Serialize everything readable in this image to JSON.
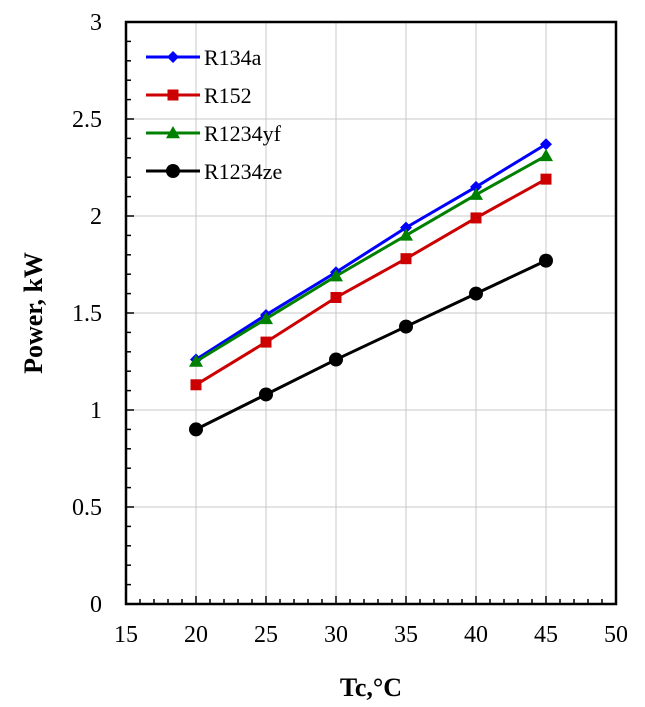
{
  "chart_data": {
    "type": "line",
    "title": "",
    "xlabel": "Tc,°C",
    "ylabel": "Power, kW",
    "xlim": [
      15,
      50
    ],
    "ylim": [
      0,
      3
    ],
    "xticks": [
      15,
      20,
      25,
      30,
      35,
      40,
      45,
      50
    ],
    "yticks": [
      0,
      0.5,
      1,
      1.5,
      2,
      2.5,
      3
    ],
    "xtick_labels": [
      "15",
      "20",
      "25",
      "30",
      "35",
      "40",
      "45",
      "50"
    ],
    "ytick_labels": [
      "0",
      "0.5",
      "1",
      "1.5",
      "2",
      "2.5",
      "3"
    ],
    "grid": true,
    "legend_position": "top-left",
    "x": [
      20,
      25,
      30,
      35,
      40,
      45
    ],
    "series": [
      {
        "name": "R134a",
        "color": "#0000ff",
        "marker": "diamond",
        "values": [
          1.26,
          1.49,
          1.71,
          1.94,
          2.15,
          2.37
        ]
      },
      {
        "name": "R152",
        "color": "#cc0000",
        "marker": "square",
        "values": [
          1.13,
          1.35,
          1.58,
          1.78,
          1.99,
          2.19
        ]
      },
      {
        "name": "R1234yf",
        "color": "#008000",
        "marker": "triangle",
        "values": [
          1.25,
          1.47,
          1.69,
          1.9,
          2.11,
          2.31
        ]
      },
      {
        "name": "R1234ze",
        "color": "#000000",
        "marker": "circle",
        "values": [
          0.9,
          1.08,
          1.26,
          1.43,
          1.6,
          1.77
        ]
      }
    ]
  }
}
